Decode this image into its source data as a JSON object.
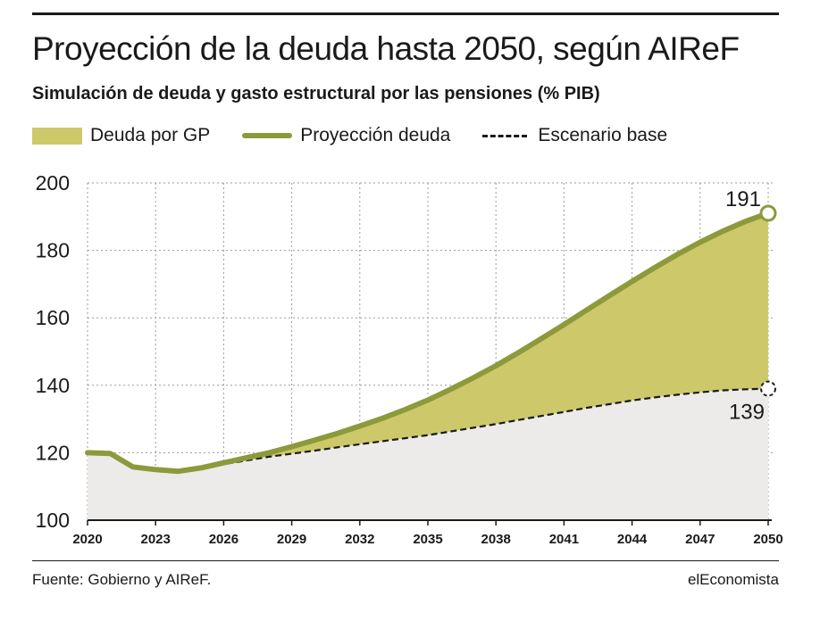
{
  "header": {
    "title": "Proyección de la deuda hasta 2050, según AIReF",
    "subtitle": "Simulación de deuda y gasto estructural por las pensiones (% PIB)"
  },
  "legend": {
    "area_label": "Deuda por GP",
    "line_label": "Proyección deuda",
    "dash_label": "Escenario base"
  },
  "annotations": {
    "end_projection": "191",
    "end_base": "139"
  },
  "footer": {
    "source": "Fuente: Gobierno y AIReF.",
    "brand": "elEconomista"
  },
  "colors": {
    "area_fill": "#cdc96a",
    "projection_line": "#8c9a3b",
    "base_fill": "#ecebe9",
    "base_line": "#1a1a1a"
  },
  "chart_data": {
    "type": "area",
    "title": "Proyección de la deuda hasta 2050, según AIReF",
    "subtitle": "Simulación de deuda y gasto estructural por las pensiones (% PIB)",
    "xlabel": "",
    "ylabel": "",
    "ylim": [
      100,
      200
    ],
    "yticks": [
      100,
      120,
      140,
      160,
      180,
      200
    ],
    "xlim": [
      2020,
      2050
    ],
    "xticks": [
      2020,
      2023,
      2026,
      2029,
      2032,
      2035,
      2038,
      2041,
      2044,
      2047,
      2050
    ],
    "grid": true,
    "legend_position": "top",
    "series": [
      {
        "name": "Proyección deuda",
        "style": "solid",
        "x": [
          2020,
          2021,
          2022,
          2023,
          2024,
          2025,
          2026,
          2027,
          2028,
          2029,
          2030,
          2031,
          2032,
          2033,
          2034,
          2035,
          2036,
          2037,
          2038,
          2039,
          2040,
          2041,
          2042,
          2043,
          2044,
          2045,
          2046,
          2047,
          2048,
          2049,
          2050
        ],
        "values": [
          120,
          119.8,
          115.8,
          115,
          114.5,
          115.5,
          117,
          118.5,
          120,
          121.8,
          123.7,
          125.7,
          127.9,
          130.2,
          132.8,
          135.6,
          138.8,
          142.2,
          145.8,
          149.7,
          153.8,
          158,
          162.3,
          166.6,
          170.8,
          174.9,
          178.8,
          182.4,
          185.7,
          188.6,
          191
        ]
      },
      {
        "name": "Escenario base",
        "style": "dashed",
        "x": [
          2024,
          2025,
          2026,
          2027,
          2028,
          2029,
          2030,
          2031,
          2032,
          2033,
          2034,
          2035,
          2036,
          2037,
          2038,
          2039,
          2040,
          2041,
          2042,
          2043,
          2044,
          2045,
          2046,
          2047,
          2048,
          2049,
          2050
        ],
        "values": [
          114.5,
          115.5,
          116.6,
          117.7,
          118.8,
          119.7,
          120.6,
          121.6,
          122.5,
          123.4,
          124.3,
          125.2,
          126.3,
          127.4,
          128.5,
          129.7,
          130.9,
          132.1,
          133.3,
          134.4,
          135.5,
          136.4,
          137.2,
          137.9,
          138.5,
          138.8,
          139
        ]
      }
    ],
    "filled_area": "Deuda por GP"
  }
}
